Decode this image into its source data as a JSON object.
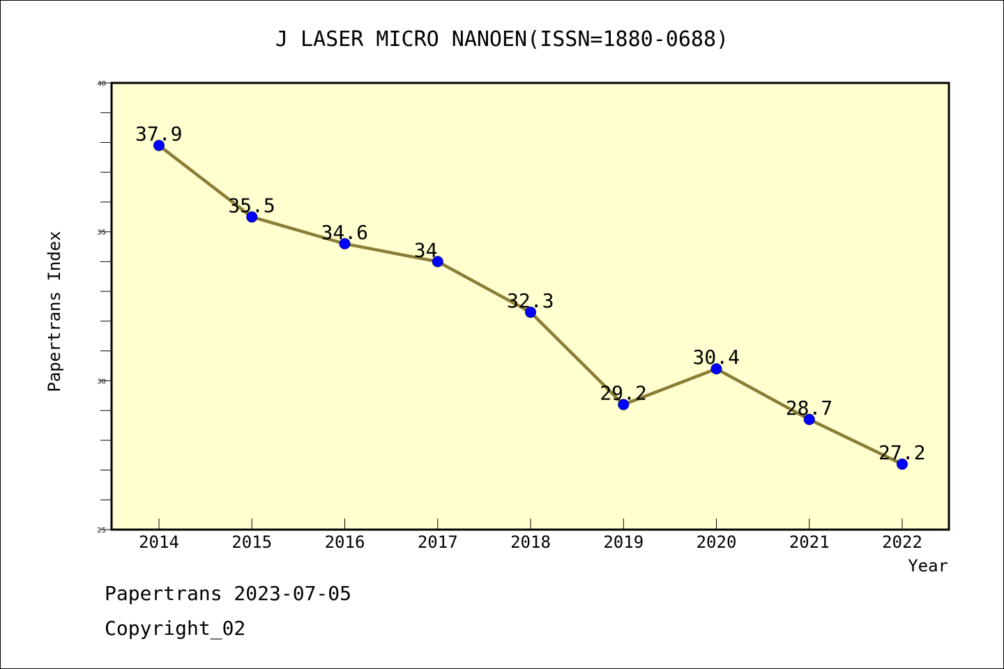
{
  "chart_data": {
    "type": "line",
    "title": "J LASER MICRO NANOEN(ISSN=1880-0688)",
    "xlabel": "Year",
    "ylabel": "Papertrans Index",
    "categories": [
      "2014",
      "2015",
      "2016",
      "2017",
      "2018",
      "2019",
      "2020",
      "2021",
      "2022"
    ],
    "series": [
      {
        "values": [
          37.9,
          35.5,
          34.6,
          34,
          32.3,
          29.2,
          30.4,
          28.7,
          27.2
        ],
        "labels": [
          "37.9",
          "35.5",
          "34.6",
          "34",
          "32.3",
          "29.2",
          "30.4",
          "28.7",
          "27.2"
        ]
      }
    ],
    "ylim": [
      25,
      40
    ],
    "yticks": [
      "25",
      "30",
      "35",
      "40"
    ],
    "grid": false,
    "colors": {
      "plot_background": "#ffffd0",
      "line": "#8b7d36",
      "marker": "#0000ff"
    }
  },
  "footer": {
    "line1": "Papertrans 2023-07-05",
    "line2": "Copyright_02"
  }
}
